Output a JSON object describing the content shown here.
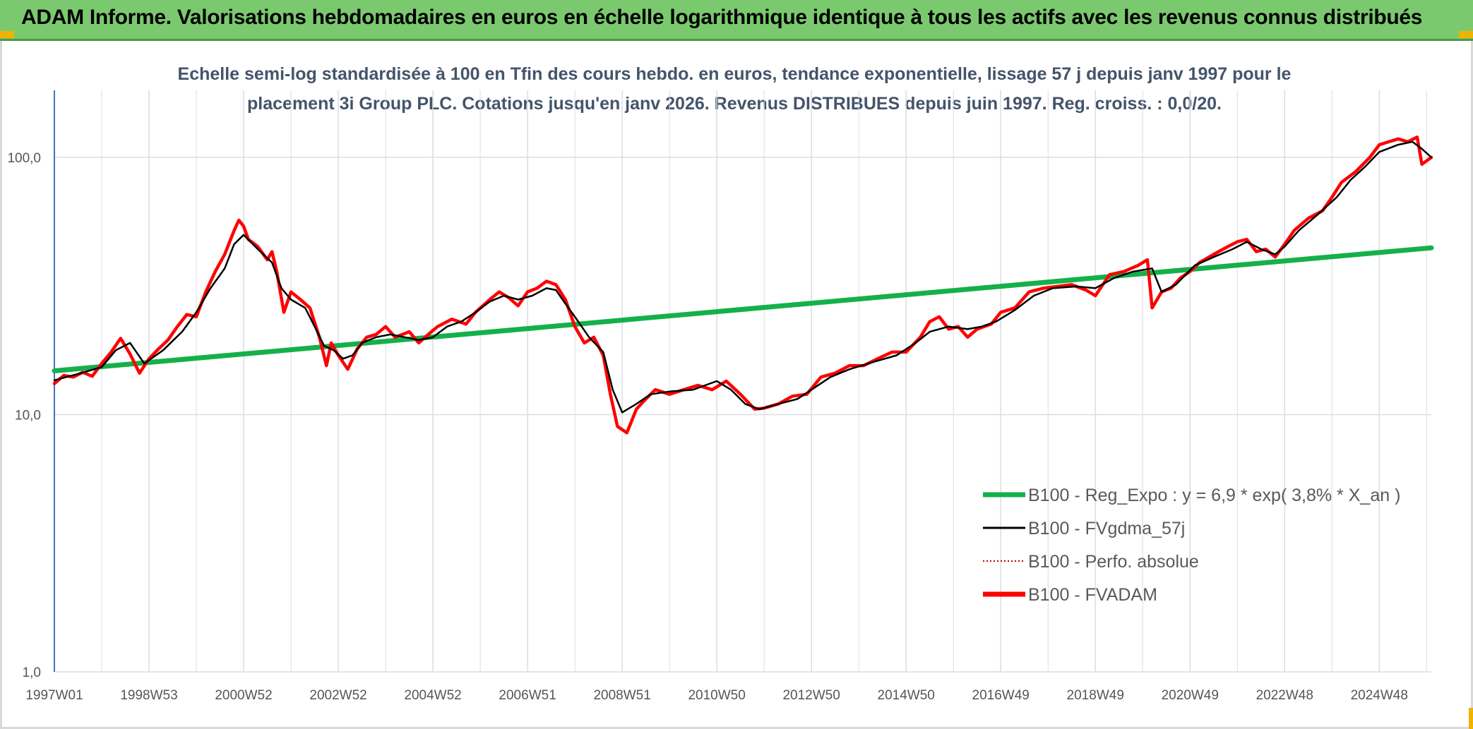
{
  "header": {
    "title": "ADAM Informe. Valorisations hebdomadaires en euros en échelle logarithmique identique à tous les actifs avec les revenus connus distribués"
  },
  "colors": {
    "banner": "#7bc96f",
    "trend": "#14b04a",
    "smooth": "#000000",
    "perf": "#c00000",
    "adam": "#ff0000",
    "grid": "#d9dde3"
  },
  "chart_data": {
    "type": "line",
    "subtitle_line1": "Echelle semi-log standardisée à 100 en Tfin des cours hebdo. en euros, tendance exponentielle, lissage 57 j depuis janv 1997 pour le",
    "subtitle_line2": "placement 3i Group PLC. Cotations jusqu'en janv 2026. Revenus DISTRIBUES depuis juin 1997. Reg. croiss. : 0,0/20.",
    "y_scale": "log",
    "ylim": [
      1,
      180
    ],
    "xlim": [
      1997.0,
      2026.1
    ],
    "y_ticks": [
      {
        "value": 1,
        "label": "1,0"
      },
      {
        "value": 10,
        "label": "10,0"
      },
      {
        "value": 100,
        "label": "100,0"
      }
    ],
    "x_ticks": [
      {
        "value": 1997.0,
        "label": "1997W01"
      },
      {
        "value": 1999.0,
        "label": "1998W53"
      },
      {
        "value": 2001.0,
        "label": "2000W52"
      },
      {
        "value": 2003.0,
        "label": "2002W52"
      },
      {
        "value": 2005.0,
        "label": "2004W52"
      },
      {
        "value": 2007.0,
        "label": "2006W51"
      },
      {
        "value": 2009.0,
        "label": "2008W51"
      },
      {
        "value": 2011.0,
        "label": "2010W50"
      },
      {
        "value": 2013.0,
        "label": "2012W50"
      },
      {
        "value": 2015.0,
        "label": "2014W50"
      },
      {
        "value": 2017.0,
        "label": "2016W49"
      },
      {
        "value": 2019.0,
        "label": "2018W49"
      },
      {
        "value": 2021.0,
        "label": "2020W49"
      },
      {
        "value": 2023.0,
        "label": "2022W48"
      },
      {
        "value": 2025.0,
        "label": "2024W48"
      }
    ],
    "legend_position": "right",
    "series": [
      {
        "name": "B100 - Reg_Expo : y = 6,9 * exp( 3,8% *  X_an )",
        "key": "trend",
        "style": "thick-green",
        "points": [
          [
            1997.0,
            14.8
          ],
          [
            2026.1,
            44.5
          ]
        ]
      },
      {
        "name": "B100 - FVgdma_57j",
        "key": "smooth",
        "style": "black",
        "points": [
          [
            1997.0,
            13.6
          ],
          [
            1997.5,
            14.4
          ],
          [
            1998.0,
            15.3
          ],
          [
            1998.3,
            17.8
          ],
          [
            1998.6,
            19
          ],
          [
            1998.9,
            15.8
          ],
          [
            1999.3,
            17.8
          ],
          [
            1999.7,
            21
          ],
          [
            2000.0,
            25
          ],
          [
            2000.3,
            31
          ],
          [
            2000.6,
            37
          ],
          [
            2000.8,
            46
          ],
          [
            2001.0,
            50
          ],
          [
            2001.3,
            44
          ],
          [
            2001.6,
            39
          ],
          [
            2001.8,
            31
          ],
          [
            2002.0,
            28
          ],
          [
            2002.3,
            26
          ],
          [
            2002.5,
            22
          ],
          [
            2002.7,
            18.5
          ],
          [
            2002.9,
            17.8
          ],
          [
            2003.1,
            16.5
          ],
          [
            2003.3,
            17
          ],
          [
            2003.5,
            19
          ],
          [
            2003.8,
            20
          ],
          [
            2004.1,
            20.5
          ],
          [
            2004.4,
            20
          ],
          [
            2004.7,
            19.5
          ],
          [
            2005.0,
            20
          ],
          [
            2005.3,
            22
          ],
          [
            2005.6,
            23
          ],
          [
            2005.9,
            25
          ],
          [
            2006.2,
            27.5
          ],
          [
            2006.5,
            29
          ],
          [
            2006.8,
            28
          ],
          [
            2007.1,
            29
          ],
          [
            2007.4,
            31
          ],
          [
            2007.6,
            30.5
          ],
          [
            2007.8,
            27
          ],
          [
            2008.0,
            24
          ],
          [
            2008.3,
            20
          ],
          [
            2008.6,
            17.5
          ],
          [
            2008.8,
            12.5
          ],
          [
            2009.0,
            10.2
          ],
          [
            2009.3,
            11
          ],
          [
            2009.6,
            12
          ],
          [
            2010.0,
            12.3
          ],
          [
            2010.5,
            12.5
          ],
          [
            2011.0,
            13.5
          ],
          [
            2011.3,
            12.5
          ],
          [
            2011.6,
            11
          ],
          [
            2011.9,
            10.5
          ],
          [
            2012.3,
            11
          ],
          [
            2012.7,
            11.5
          ],
          [
            2013.0,
            12.5
          ],
          [
            2013.4,
            14
          ],
          [
            2013.8,
            15
          ],
          [
            2014.3,
            16
          ],
          [
            2014.8,
            17
          ],
          [
            2015.2,
            19
          ],
          [
            2015.5,
            21
          ],
          [
            2015.9,
            22
          ],
          [
            2016.3,
            21.5
          ],
          [
            2016.6,
            22
          ],
          [
            2016.9,
            23
          ],
          [
            2017.3,
            25.5
          ],
          [
            2017.7,
            29
          ],
          [
            2018.1,
            31
          ],
          [
            2018.6,
            31.5
          ],
          [
            2019.0,
            31
          ],
          [
            2019.4,
            34
          ],
          [
            2019.8,
            36
          ],
          [
            2020.2,
            37
          ],
          [
            2020.4,
            30
          ],
          [
            2020.7,
            32
          ],
          [
            2021.1,
            38
          ],
          [
            2021.5,
            41
          ],
          [
            2021.9,
            44
          ],
          [
            2022.2,
            47
          ],
          [
            2022.5,
            44
          ],
          [
            2022.8,
            42
          ],
          [
            2023.0,
            45
          ],
          [
            2023.3,
            52
          ],
          [
            2023.7,
            60
          ],
          [
            2024.1,
            70
          ],
          [
            2024.4,
            82
          ],
          [
            2024.7,
            92
          ],
          [
            2025.0,
            105
          ],
          [
            2025.4,
            112
          ],
          [
            2025.7,
            115
          ],
          [
            2025.9,
            108
          ],
          [
            2026.1,
            100
          ]
        ]
      },
      {
        "name": "B100 - Perfo. absolue",
        "key": "perf",
        "style": "dotted-red"
      },
      {
        "name": "B100 - FVADAM",
        "key": "adam",
        "style": "thick-red",
        "points": [
          [
            1997.0,
            13.2
          ],
          [
            1997.2,
            14.2
          ],
          [
            1997.4,
            14.0
          ],
          [
            1997.6,
            14.6
          ],
          [
            1997.8,
            14.1
          ],
          [
            1998.0,
            15.8
          ],
          [
            1998.2,
            17.5
          ],
          [
            1998.4,
            19.8
          ],
          [
            1998.6,
            17.2
          ],
          [
            1998.8,
            14.5
          ],
          [
            1999.0,
            16.5
          ],
          [
            1999.2,
            18
          ],
          [
            1999.4,
            19.5
          ],
          [
            1999.6,
            22
          ],
          [
            1999.8,
            24.5
          ],
          [
            2000.0,
            24
          ],
          [
            2000.2,
            30
          ],
          [
            2000.4,
            36
          ],
          [
            2000.6,
            42
          ],
          [
            2000.8,
            52
          ],
          [
            2000.9,
            57
          ],
          [
            2001.0,
            54
          ],
          [
            2001.1,
            48
          ],
          [
            2001.3,
            45
          ],
          [
            2001.5,
            40
          ],
          [
            2001.6,
            43
          ],
          [
            2001.7,
            36
          ],
          [
            2001.85,
            25
          ],
          [
            2002.0,
            30
          ],
          [
            2002.2,
            28
          ],
          [
            2002.4,
            26
          ],
          [
            2002.6,
            20
          ],
          [
            2002.75,
            15.5
          ],
          [
            2002.85,
            19
          ],
          [
            2003.0,
            17
          ],
          [
            2003.2,
            15
          ],
          [
            2003.4,
            18
          ],
          [
            2003.6,
            20
          ],
          [
            2003.8,
            20.5
          ],
          [
            2004.0,
            22
          ],
          [
            2004.2,
            20
          ],
          [
            2004.5,
            21
          ],
          [
            2004.7,
            19
          ],
          [
            2004.9,
            20.5
          ],
          [
            2005.1,
            22
          ],
          [
            2005.4,
            23.5
          ],
          [
            2005.7,
            22.5
          ],
          [
            2005.9,
            25
          ],
          [
            2006.2,
            28
          ],
          [
            2006.4,
            30
          ],
          [
            2006.6,
            28.5
          ],
          [
            2006.8,
            26.5
          ],
          [
            2007.0,
            30
          ],
          [
            2007.2,
            31
          ],
          [
            2007.4,
            33
          ],
          [
            2007.6,
            32
          ],
          [
            2007.8,
            28
          ],
          [
            2008.0,
            22
          ],
          [
            2008.2,
            19
          ],
          [
            2008.4,
            20
          ],
          [
            2008.6,
            17
          ],
          [
            2008.75,
            12
          ],
          [
            2008.9,
            9
          ],
          [
            2009.1,
            8.5
          ],
          [
            2009.3,
            10.5
          ],
          [
            2009.5,
            11.5
          ],
          [
            2009.7,
            12.5
          ],
          [
            2010.0,
            12
          ],
          [
            2010.3,
            12.5
          ],
          [
            2010.6,
            13
          ],
          [
            2010.9,
            12.5
          ],
          [
            2011.2,
            13.5
          ],
          [
            2011.5,
            12
          ],
          [
            2011.8,
            10.5
          ],
          [
            2012.0,
            10.6
          ],
          [
            2012.3,
            11
          ],
          [
            2012.6,
            11.8
          ],
          [
            2012.9,
            12
          ],
          [
            2013.2,
            14
          ],
          [
            2013.5,
            14.5
          ],
          [
            2013.8,
            15.5
          ],
          [
            2014.1,
            15.5
          ],
          [
            2014.4,
            16.5
          ],
          [
            2014.7,
            17.5
          ],
          [
            2015.0,
            17.5
          ],
          [
            2015.3,
            20
          ],
          [
            2015.5,
            23
          ],
          [
            2015.7,
            24
          ],
          [
            2015.9,
            21.5
          ],
          [
            2016.1,
            22
          ],
          [
            2016.3,
            20
          ],
          [
            2016.5,
            21.5
          ],
          [
            2016.8,
            22.5
          ],
          [
            2017.0,
            25
          ],
          [
            2017.3,
            26
          ],
          [
            2017.6,
            30
          ],
          [
            2017.9,
            31
          ],
          [
            2018.2,
            31.5
          ],
          [
            2018.5,
            32
          ],
          [
            2018.8,
            30.5
          ],
          [
            2019.0,
            29
          ],
          [
            2019.3,
            35
          ],
          [
            2019.6,
            36
          ],
          [
            2019.9,
            38
          ],
          [
            2020.1,
            40
          ],
          [
            2020.2,
            26
          ],
          [
            2020.4,
            30
          ],
          [
            2020.6,
            31
          ],
          [
            2020.8,
            34
          ],
          [
            2021.0,
            36
          ],
          [
            2021.2,
            39
          ],
          [
            2021.5,
            42
          ],
          [
            2021.8,
            45
          ],
          [
            2022.0,
            47
          ],
          [
            2022.2,
            48
          ],
          [
            2022.4,
            43
          ],
          [
            2022.6,
            44
          ],
          [
            2022.8,
            41
          ],
          [
            2023.0,
            46
          ],
          [
            2023.2,
            52
          ],
          [
            2023.5,
            58
          ],
          [
            2023.8,
            62
          ],
          [
            2024.0,
            70
          ],
          [
            2024.2,
            80
          ],
          [
            2024.5,
            88
          ],
          [
            2024.8,
            100
          ],
          [
            2025.0,
            112
          ],
          [
            2025.2,
            115
          ],
          [
            2025.4,
            118
          ],
          [
            2025.6,
            115
          ],
          [
            2025.8,
            120
          ],
          [
            2025.9,
            94
          ],
          [
            2026.1,
            100
          ]
        ]
      }
    ]
  }
}
